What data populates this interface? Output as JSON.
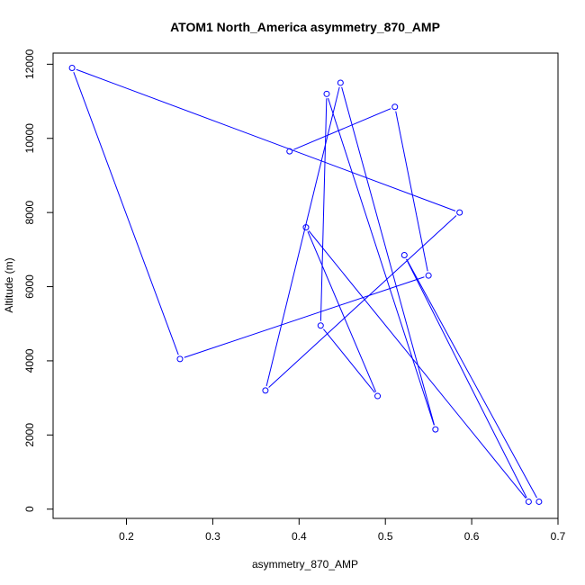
{
  "chart_data": {
    "type": "line",
    "title": "ATOM1 North_America asymmetry_870_AMP",
    "xlabel": "asymmetry_870_AMP",
    "ylabel": "Altitude (m)",
    "xlim": [
      0.115,
      0.7
    ],
    "ylim": [
      -250,
      12300
    ],
    "x_ticks": [
      0.2,
      0.3,
      0.4,
      0.5,
      0.6,
      0.7
    ],
    "x_tick_labels": [
      "0.2",
      "0.3",
      "0.4",
      "0.5",
      "0.6",
      "0.7"
    ],
    "y_ticks": [
      0,
      2000,
      4000,
      6000,
      8000,
      10000,
      12000
    ],
    "y_tick_labels": [
      "0",
      "2000",
      "4000",
      "6000",
      "8000",
      "10000",
      "12000"
    ],
    "grid": false,
    "series": [
      {
        "color": "#0000ff",
        "marker": "open-circle",
        "x": [
          0.678,
          0.522,
          0.666,
          0.408,
          0.491,
          0.425,
          0.432,
          0.558,
          0.448,
          0.361,
          0.586,
          0.137,
          0.262,
          0.55,
          0.511,
          0.389
        ],
        "y": [
          200,
          6850,
          200,
          7600,
          3050,
          4950,
          11200,
          2150,
          11500,
          3200,
          8000,
          11900,
          4050,
          6300,
          10850,
          9650
        ]
      }
    ]
  }
}
